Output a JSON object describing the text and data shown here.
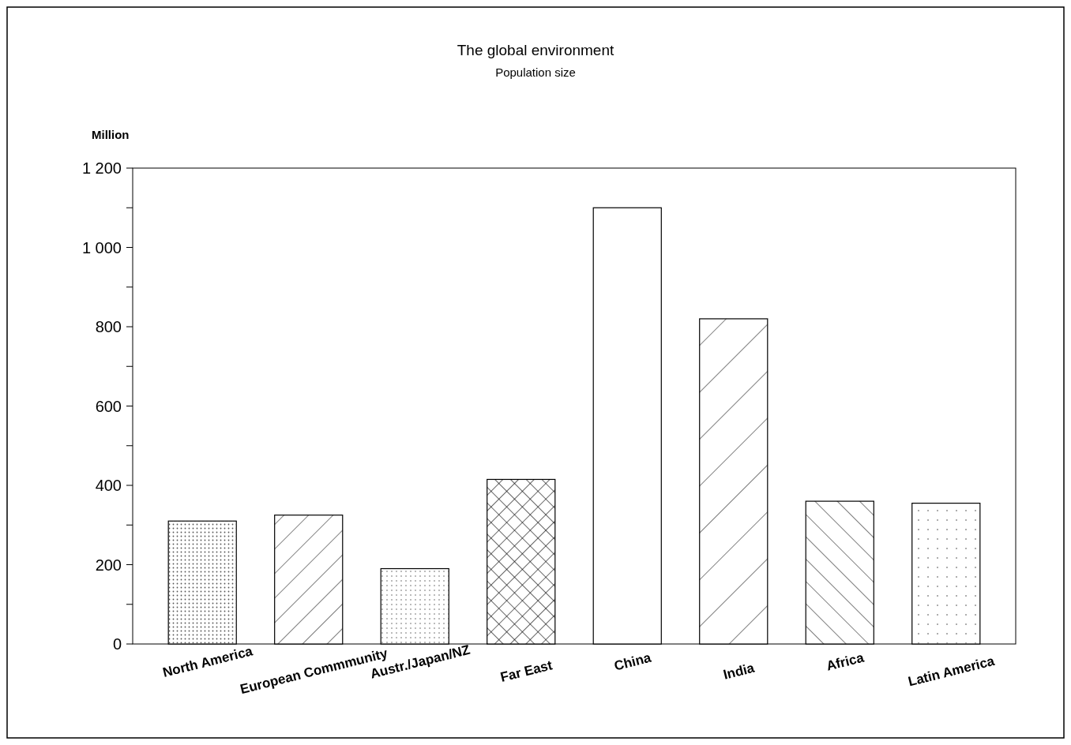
{
  "chart_data": {
    "type": "bar",
    "title": "The global environment",
    "subtitle": "Population size",
    "ylabel": "Million",
    "categories": [
      "North America",
      "European Commmunity",
      "Austr./Japan/NZ",
      "Far East",
      "China",
      "India",
      "Africa",
      "Latin America"
    ],
    "values": [
      310,
      325,
      190,
      415,
      1100,
      820,
      360,
      355
    ],
    "color": "#ffffff",
    "ylim": [
      0,
      1200
    ],
    "yticks": [
      0,
      {
        "value": 100,
        "label": null
      },
      200,
      {
        "value": 300,
        "label": null
      },
      400,
      {
        "value": 500,
        "label": null
      },
      600,
      {
        "value": 700,
        "label": null
      },
      800,
      {
        "value": 900,
        "label": null
      },
      {
        "value": 1000,
        "label": "1 000"
      },
      {
        "value": 1100,
        "label": null
      },
      {
        "value": 1200,
        "label": "1 200"
      }
    ],
    "grid": false
  }
}
